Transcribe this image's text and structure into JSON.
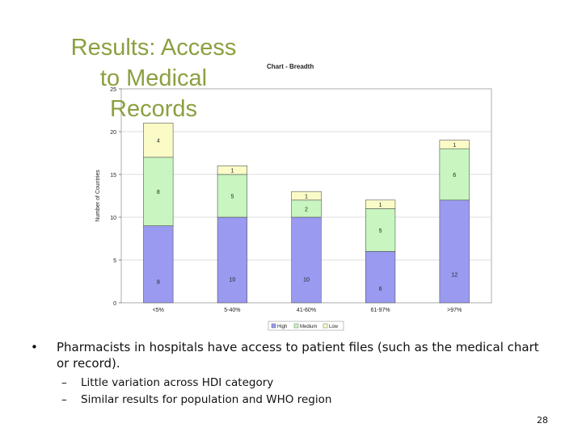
{
  "slide": {
    "title_lines": [
      "Results: Access",
      "to Medical",
      "Records"
    ],
    "bullet_marker": "•",
    "bullet_text": "Pharmacists in hospitals have access to patient files (such as the medical chart or record).",
    "sub_marker": "–",
    "sub_bullets": [
      "Little variation across HDI category",
      "Similar results for population and WHO region"
    ],
    "page_number": "28"
  },
  "chart_data": {
    "type": "bar",
    "stacked": true,
    "title": "Chart - Breadth",
    "xlabel": "",
    "ylabel": "Number of Countries",
    "ylim": [
      0,
      25
    ],
    "yticks": [
      0,
      5,
      10,
      15,
      20,
      25
    ],
    "categories": [
      "<5%",
      "5-40%",
      "41-60%",
      "61-97%",
      ">97%"
    ],
    "series": [
      {
        "name": "High",
        "color": "#9a9af0",
        "values": [
          9,
          10,
          10,
          6,
          12
        ],
        "labels": [
          "9",
          "10",
          "10",
          "6",
          "12"
        ]
      },
      {
        "name": "Medium",
        "color": "#c8f5c0",
        "values": [
          8,
          5,
          2,
          5,
          6
        ],
        "labels": [
          "8",
          "5",
          "2",
          "5",
          "6"
        ]
      },
      {
        "name": "Low",
        "color": "#fbfbc8",
        "values": [
          4,
          1,
          1,
          1,
          1
        ],
        "labels": [
          "4",
          "1",
          "1",
          "1",
          "1"
        ]
      }
    ],
    "gridlines": true,
    "legend_position": "bottom"
  }
}
